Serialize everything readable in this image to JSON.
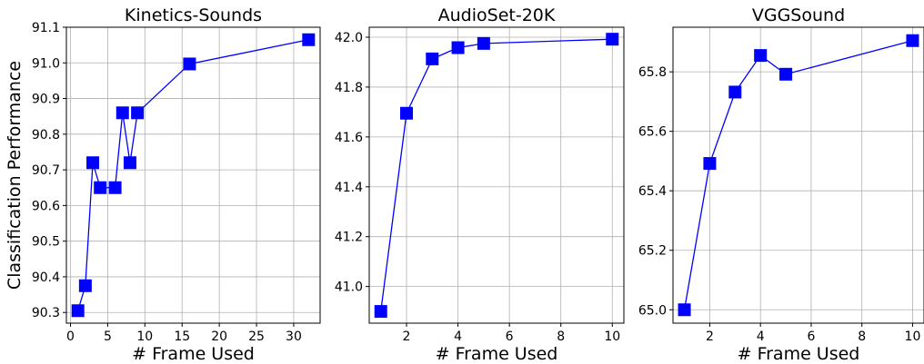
{
  "chart_data": [
    {
      "type": "line",
      "title": "Kinetics-Sounds",
      "xlabel": "# Frame Used",
      "ylabel": "Classification Performance",
      "x": [
        1,
        2,
        3,
        4,
        6,
        7,
        8,
        9,
        16,
        32
      ],
      "y": [
        90.305,
        90.375,
        90.72,
        90.65,
        90.65,
        90.86,
        90.72,
        90.86,
        90.997,
        91.065
      ],
      "xlim": [
        -0.55,
        33.55
      ],
      "ylim": [
        90.27,
        91.1
      ],
      "xticks": [
        0,
        5,
        10,
        15,
        20,
        25,
        30
      ],
      "yticks": [
        90.3,
        90.4,
        90.5,
        90.6,
        90.7,
        90.8,
        90.9,
        91.0,
        91.1
      ],
      "xtick_labels": [
        "0",
        "5",
        "10",
        "15",
        "20",
        "25",
        "30"
      ],
      "ytick_labels": [
        "90.3",
        "90.4",
        "90.5",
        "90.6",
        "90.7",
        "90.8",
        "90.9",
        "91.0",
        "91.1"
      ],
      "grid": true,
      "color": "#0000ff",
      "marker": "square"
    },
    {
      "type": "line",
      "title": "AudioSet-20K",
      "xlabel": "# Frame Used",
      "ylabel": "",
      "x": [
        1,
        2,
        3,
        4,
        5,
        10
      ],
      "y": [
        40.9,
        41.695,
        41.913,
        41.958,
        41.975,
        41.992
      ],
      "xlim": [
        0.55,
        10.45
      ],
      "ylim": [
        40.853,
        42.04
      ],
      "xticks": [
        2,
        4,
        6,
        8,
        10
      ],
      "yticks": [
        41.0,
        41.2,
        41.4,
        41.6,
        41.8,
        42.0
      ],
      "xtick_labels": [
        "2",
        "4",
        "6",
        "8",
        "10"
      ],
      "ytick_labels": [
        "41.0",
        "41.2",
        "41.4",
        "41.6",
        "41.8",
        "42.0"
      ],
      "grid": true,
      "color": "#0000ff",
      "marker": "square"
    },
    {
      "type": "line",
      "title": "VGGSound",
      "xlabel": "# Frame Used",
      "ylabel": "",
      "x": [
        1,
        2,
        3,
        4,
        5,
        10
      ],
      "y": [
        65.0,
        65.492,
        65.732,
        65.855,
        65.792,
        65.905
      ],
      "xlim": [
        0.55,
        10.45
      ],
      "ylim": [
        64.955,
        65.95
      ],
      "xticks": [
        2,
        4,
        6,
        8,
        10
      ],
      "yticks": [
        65.0,
        65.2,
        65.4,
        65.6,
        65.8
      ],
      "xtick_labels": [
        "2",
        "4",
        "6",
        "8",
        "10"
      ],
      "ytick_labels": [
        "65.0",
        "65.2",
        "65.4",
        "65.6",
        "65.8"
      ],
      "grid": true,
      "color": "#0000ff",
      "marker": "square"
    }
  ]
}
